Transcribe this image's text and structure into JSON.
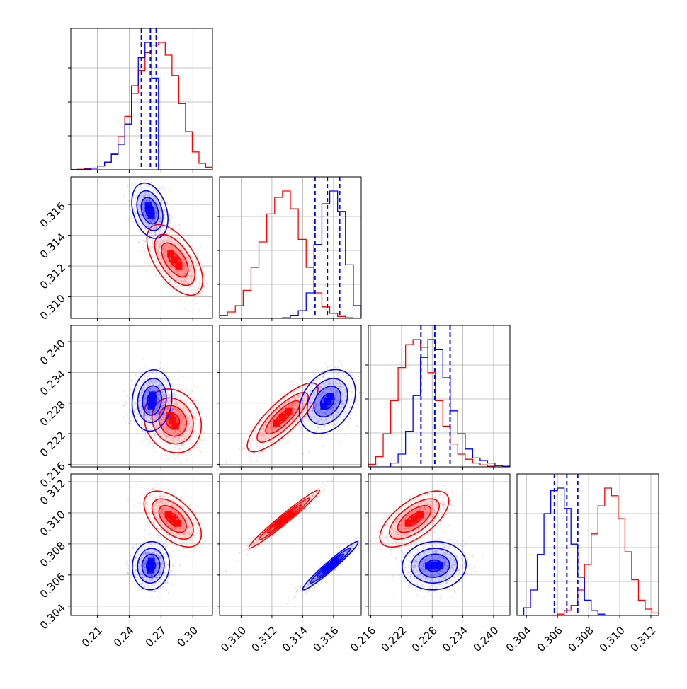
{
  "chart_data": {
    "type": "corner",
    "title": "",
    "parameters": [
      {
        "ticks": [
          0.21,
          0.24,
          0.27,
          0.3
        ],
        "tick_labels": [
          "0.21",
          "0.24",
          "0.27",
          "0.30"
        ],
        "range": [
          0.185,
          0.3185
        ]
      },
      {
        "ticks": [
          0.31,
          0.312,
          0.314,
          0.316
        ],
        "tick_labels": [
          "0.310",
          "0.312",
          "0.314",
          "0.316"
        ],
        "range": [
          0.3086,
          0.3178
        ]
      },
      {
        "ticks": [
          0.216,
          0.222,
          0.228,
          0.234,
          0.24
        ],
        "tick_labels": [
          "0.216",
          "0.222",
          "0.228",
          "0.234",
          "0.240"
        ],
        "range": [
          0.2155,
          0.2432
        ]
      },
      {
        "ticks": [
          0.304,
          0.306,
          0.308,
          0.31,
          0.312
        ],
        "tick_labels": [
          "0.304",
          "0.306",
          "0.308",
          "0.310",
          "0.312"
        ],
        "range": [
          0.3034,
          0.3125
        ]
      }
    ],
    "series": [
      {
        "color": "#ff0000",
        "marginals": [
          {
            "values": [
              0.002,
              0.004,
              0.008,
              0.014,
              0.03,
              0.06,
              0.13,
              0.26,
              0.42,
              0.6,
              0.78,
              0.92,
              0.98,
              1.0,
              0.9,
              0.74,
              0.52,
              0.3,
              0.14,
              0.05,
              0.02
            ]
          },
          {
            "values": [
              0.02,
              0.05,
              0.1,
              0.22,
              0.4,
              0.6,
              0.82,
              0.95,
              1.0,
              0.86,
              0.62,
              0.4,
              0.2,
              0.09,
              0.04,
              0.015,
              0.005,
              0.0
            ]
          },
          {
            "values": [
              0.02,
              0.08,
              0.26,
              0.52,
              0.78,
              0.96,
              1.0,
              0.94,
              0.74,
              0.52,
              0.32,
              0.18,
              0.1,
              0.06,
              0.03,
              0.015,
              0.005,
              0.0,
              0.0
            ]
          },
          {
            "values": [
              0.0,
              0.0,
              0.0,
              0.0,
              0.0,
              0.0,
              0.01,
              0.04,
              0.08,
              0.2,
              0.4,
              0.64,
              0.86,
              1.0,
              0.94,
              0.76,
              0.5,
              0.28,
              0.12,
              0.05,
              0.02
            ]
          }
        ],
        "pairs": [
          {
            "pair": [
              1,
              0
            ],
            "center": [
              0.283,
              0.3124
            ],
            "sd": [
              0.0105,
              0.00092
            ],
            "rho": -0.58
          },
          {
            "pair": [
              2,
              0
            ],
            "center": [
              0.281,
              0.2245
            ],
            "sd": [
              0.0108,
              0.0025
            ],
            "rho": -0.15
          },
          {
            "pair": [
              2,
              1
            ],
            "center": [
              0.3127,
              0.2252
            ],
            "sd": [
              0.00092,
              0.0027
            ],
            "rho": 0.82
          },
          {
            "pair": [
              3,
              0
            ],
            "center": [
              0.281,
              0.3096
            ],
            "sd": [
              0.0108,
              0.00072
            ],
            "rho": -0.55
          },
          {
            "pair": [
              3,
              1
            ],
            "center": [
              0.3128,
              0.3096
            ],
            "sd": [
              0.00092,
              0.00075
            ],
            "rho": 0.98
          },
          {
            "pair": [
              3,
              2
            ],
            "center": [
              0.2245,
              0.3096
            ],
            "sd": [
              0.0027,
              0.00072
            ],
            "rho": 0.65
          }
        ]
      },
      {
        "color": "#0000ff",
        "quantiles": [
          [
            0.2515,
            0.26,
            0.2655
          ],
          [
            0.3148,
            0.3156,
            0.3164
          ],
          [
            0.2258,
            0.2285,
            0.2315
          ],
          [
            0.3058,
            0.3066,
            0.3073
          ]
        ],
        "marginals": [
          {
            "values": [
              0.0,
              0.0,
              0.005,
              0.012,
              0.03,
              0.06,
              0.12,
              0.2,
              0.36,
              0.66,
              0.88,
              1.0,
              0.72,
              0.0,
              0.0,
              0.0,
              0.0,
              0.0,
              0.0,
              0.0,
              0.0
            ]
          },
          {
            "values": [
              0.0,
              0.0,
              0.0,
              0.0,
              0.0,
              0.0,
              0.0,
              0.0,
              0.005,
              0.02,
              0.06,
              0.2,
              0.58,
              0.9,
              1.0,
              0.84,
              0.42,
              0.1
            ]
          },
          {
            "values": [
              0.0,
              0.0,
              0.0,
              0.03,
              0.1,
              0.28,
              0.56,
              0.86,
              1.0,
              0.92,
              0.7,
              0.44,
              0.26,
              0.14,
              0.07,
              0.05,
              0.03,
              0.01,
              0.005
            ]
          },
          {
            "values": [
              0.0,
              0.06,
              0.2,
              0.48,
              0.8,
              0.98,
              1.0,
              0.84,
              0.56,
              0.3,
              0.12,
              0.04,
              0.01,
              0.0,
              0.0,
              0.0,
              0.0,
              0.0,
              0.0,
              0.0,
              0.0
            ]
          }
        ],
        "pairs": [
          {
            "pair": [
              1,
              0
            ],
            "center": [
              0.2595,
              0.3156
            ],
            "sd": [
              0.0068,
              0.00072
            ],
            "rho": -0.3
          },
          {
            "pair": [
              2,
              0
            ],
            "center": [
              0.2615,
              0.2285
            ],
            "sd": [
              0.0075,
              0.0024
            ],
            "rho": 0.1
          },
          {
            "pair": [
              2,
              1
            ],
            "center": [
              0.3156,
              0.2283
            ],
            "sd": [
              0.00073,
              0.0025
            ],
            "rho": 0.3
          },
          {
            "pair": [
              3,
              0
            ],
            "center": [
              0.2605,
              0.3066
            ],
            "sd": [
              0.007,
              0.00062
            ],
            "rho": 0.05
          },
          {
            "pair": [
              3,
              1
            ],
            "center": [
              0.3158,
              0.3066
            ],
            "sd": [
              0.00072,
              0.00062
            ],
            "rho": 0.97
          },
          {
            "pair": [
              3,
              2
            ],
            "center": [
              0.2284,
              0.3066
            ],
            "sd": [
              0.0025,
              0.00062
            ],
            "rho": 0.05
          }
        ]
      }
    ],
    "grid": true,
    "legend": "none"
  }
}
